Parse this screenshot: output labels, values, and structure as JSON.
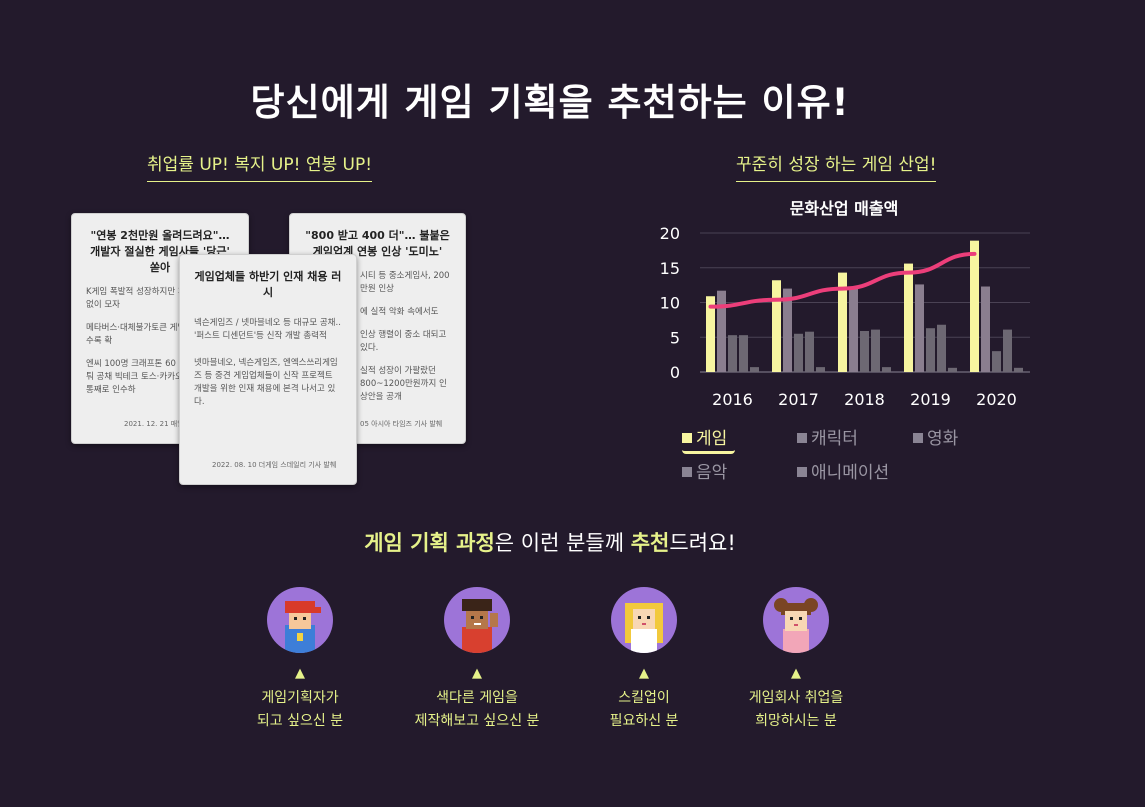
{
  "title": "당신에게 게임 기획을 추천하는 이유!",
  "left": {
    "heading": "취업률 UP! 복지 UP! 연봉 UP!",
    "cards": [
      {
        "title": "\"연봉 2천만원 올려드려요\"… 개발자 절실한 게임사들 '당근' 쏟아",
        "body1": "K게임 폭발적 성장하지만 개발인력은 턱없이 모자",
        "body2": "메타버스·대체불가토큰 게임산업 영역 갈수록 확",
        "body3": "엔씨 100명 크래프톤 60 대형사들 앞다퉈 공채 빅테크 토스·카카오와 유망업체 통째로 인수하",
        "source": "2021. 12. 21 매일"
      },
      {
        "title": "\"800 받고 400 더\"… 불붙은 게임업계 연봉 인상 '도미노'",
        "body1": "시티 등 중소게임사, 200만원 인상",
        "body2": "에 실적 악화 속에서도",
        "body3": "인상 행렬이 중소 대되고 있다.",
        "body4": "실적 성장이 가팔랐던 800~1200만원까지 인상안을 공개",
        "source": "05 아시아 타임즈 기사 발췌"
      },
      {
        "title": "게임업체들 하반기 인재 채용 러시",
        "body1": "넥슨게임즈 / 넷마블네오 등 대규모 공채.. '퍼스트 디센던트'등 신작 개발 총력적",
        "body2": "넷마블네오, 넥슨게임즈, 엔엑스쓰리게임즈 등 중견 게임업체들이 신작 프로젝트 개발을 위한 인재 채용에 본격 나서고 있다.",
        "source": "2022. 08. 10 더게임 스데일리 기사 발췌"
      }
    ]
  },
  "right": {
    "heading": "꾸준히 성장 하는 게임 산업!",
    "chart_data": {
      "type": "bar",
      "title": "문화산업 매출액",
      "categories": [
        "2016",
        "2017",
        "2018",
        "2019",
        "2020"
      ],
      "ylim": [
        0,
        20
      ],
      "yticks": [
        "0",
        "5",
        "10",
        "15",
        "20"
      ],
      "grid": true,
      "legend_position": "bottom",
      "series": [
        {
          "name": "게임",
          "values": [
            10.9,
            13.2,
            14.3,
            15.6,
            18.9
          ],
          "color": "#f7f5a0"
        },
        {
          "name": "캐릭터",
          "values": [
            11.7,
            12.0,
            12.2,
            12.6,
            12.3
          ],
          "color": "#8a7e8f"
        },
        {
          "name": "영화",
          "values": [
            5.3,
            5.5,
            5.9,
            6.3,
            3.0
          ],
          "color": "#6d6873"
        },
        {
          "name": "음악",
          "values": [
            5.3,
            5.8,
            6.1,
            6.8,
            6.1
          ],
          "color": "#6d6873"
        },
        {
          "name": "애니메이션",
          "values": [
            0.7,
            0.7,
            0.7,
            0.6,
            0.6
          ],
          "color": "#6d6873"
        }
      ],
      "trend": {
        "values": [
          9.4,
          10.4,
          12.0,
          14.3,
          17.0
        ],
        "color": "#ec3e7a"
      }
    }
  },
  "section2": {
    "part1": "게임 기획 과정",
    "part2": "은 이런 분들께 ",
    "part3": "추천",
    "part4": "드려요!"
  },
  "personas": [
    {
      "line1": "게임기획자가",
      "line2": "되고 싶으신 분"
    },
    {
      "line1": "색다른 게임을",
      "line2": "제작해보고 싶으신 분"
    },
    {
      "line1": "스킬업이",
      "line2": "필요하신 분"
    },
    {
      "line1": "게임회사 취업을",
      "line2": "희망하시는 분"
    }
  ],
  "arrow_glyph": "▲"
}
